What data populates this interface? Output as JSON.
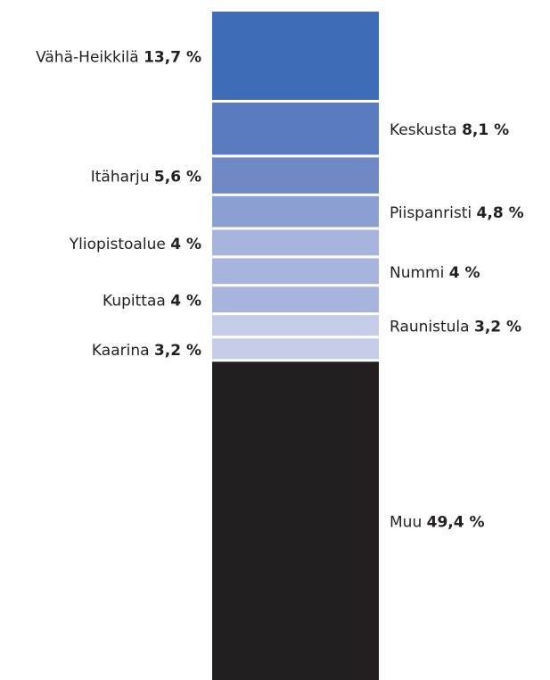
{
  "chart_data": {
    "type": "stacked-bar",
    "categories": [
      "Vähä-Heikkilä",
      "Keskusta",
      "Itäharju",
      "Piispanristi",
      "Yliopistoalue",
      "Nummi",
      "Kupittaa",
      "Raunistula",
      "Kaarina",
      "Muu"
    ],
    "values": [
      13.7,
      8.1,
      5.6,
      4.8,
      4,
      4,
      4,
      3.2,
      3.2,
      49.4
    ],
    "value_labels": [
      "13,7 %",
      "8,1 %",
      "5,6 %",
      "4,8 %",
      "4 %",
      "4 %",
      "4 %",
      "3,2 %",
      "3,2 %",
      "49,4 %"
    ],
    "colors": [
      "#3f6cb8",
      "#5a7abf",
      "#7188c6",
      "#8c9fd3",
      "#a7b4dd",
      "#a7b4dd",
      "#a7b4dd",
      "#c5cce8",
      "#c5cce8",
      "#231f20"
    ]
  }
}
